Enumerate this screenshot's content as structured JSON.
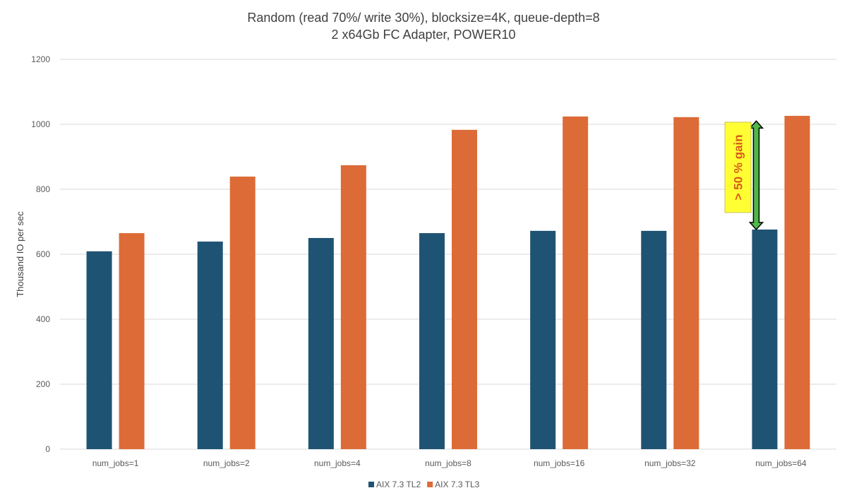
{
  "chart_data": {
    "type": "bar",
    "title": [
      "Random (read 70%/ write 30%), blocksize=4K, queue-depth=8",
      "2 x64Gb FC Adapter, POWER10"
    ],
    "xlabel": "",
    "ylabel": "Thousand IO per sec",
    "ylim": [
      0,
      1200
    ],
    "yticks": [
      0,
      200,
      400,
      600,
      800,
      1000,
      1200
    ],
    "grid": true,
    "legend_position": "bottom",
    "categories": [
      "num_jobs=1",
      "num_jobs=2",
      "num_jobs=4",
      "num_jobs=8",
      "num_jobs=16",
      "num_jobs=32",
      "num_jobs=64"
    ],
    "series": [
      {
        "name": "AIX 7.3 TL2",
        "color": "#1f5373",
        "values": [
          609,
          639,
          650,
          665,
          672,
          672,
          676
        ]
      },
      {
        "name": "AIX 7.3 TL3",
        "color": "#dd6b37",
        "values": [
          665,
          839,
          874,
          983,
          1024,
          1022,
          1026
        ]
      }
    ],
    "annotation": {
      "text": "> 50 % gain",
      "category": "num_jobs=64",
      "from": 676,
      "to": 1010,
      "box_color": "#ffff33",
      "arrow_color": "#4fb848"
    }
  }
}
